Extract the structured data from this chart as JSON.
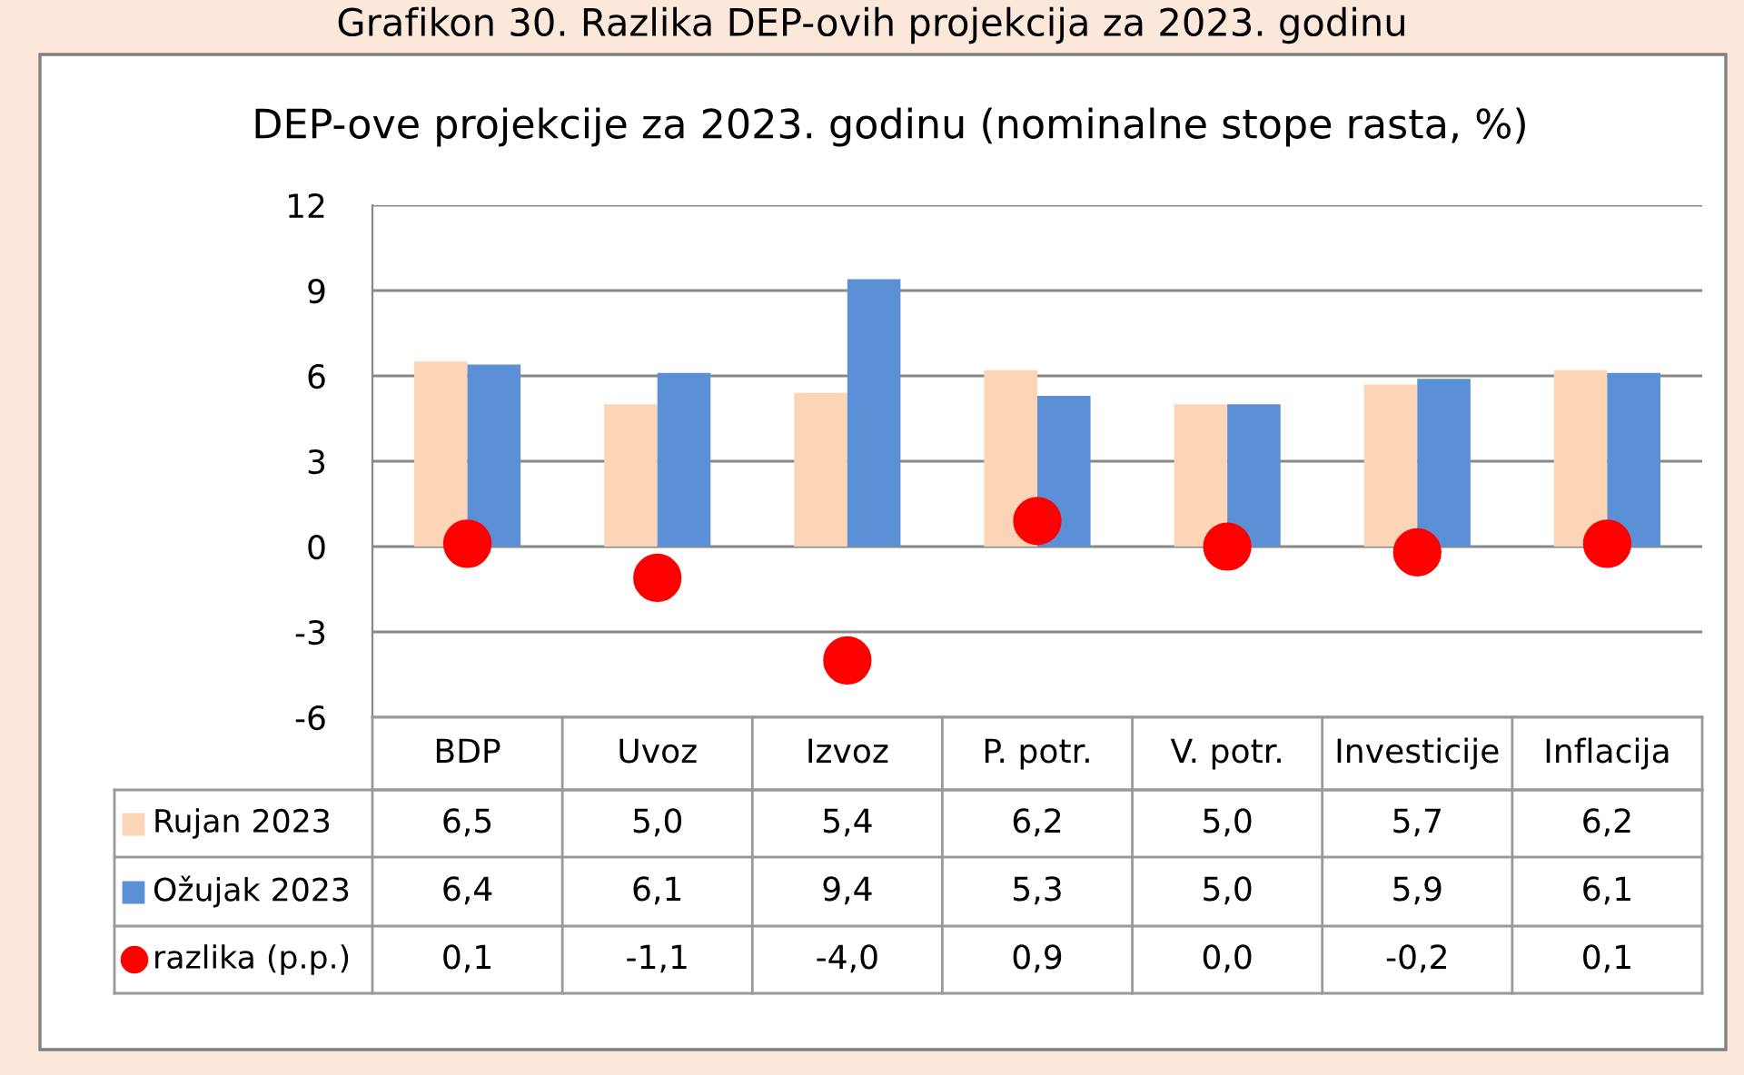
{
  "chart_data": {
    "type": "bar",
    "title": "Grafikon 30. Razlika DEP-ovih projekcija za 2023. godinu",
    "subtitle": "DEP-ove projekcije za 2023. godinu (nominalne stope rasta, %)",
    "categories": [
      "BDP",
      "Uvoz",
      "Izvoz",
      "P. potr.",
      "V. potr.",
      "Investicije",
      "Inflacija"
    ],
    "series": [
      {
        "name": "Rujan 2023",
        "color": "#fbd5b5",
        "values": [
          6.5,
          5.0,
          5.4,
          6.2,
          5.0,
          5.7,
          6.2
        ],
        "value_labels": [
          "6,5",
          "5,0",
          "5,4",
          "6,2",
          "5,0",
          "5,7",
          "6,2"
        ]
      },
      {
        "name": "Ožujak 2023",
        "color": "#5b8fd6",
        "values": [
          6.4,
          6.1,
          9.4,
          5.3,
          5.0,
          5.9,
          6.1
        ],
        "value_labels": [
          "6,4",
          "6,1",
          "9,4",
          "5,3",
          "5,0",
          "5,9",
          "6,1"
        ]
      },
      {
        "name": "razlika (p.p.)",
        "type": "scatter",
        "marker": "circle",
        "color": "#ff0000",
        "values": [
          0.1,
          -1.1,
          -4.0,
          0.9,
          0.0,
          -0.2,
          0.1
        ],
        "value_labels": [
          "0,1",
          "-1,1",
          "-4,0",
          "0,9",
          "0,0",
          "-0,2",
          "0,1"
        ]
      }
    ],
    "ylim": [
      -6,
      12
    ],
    "yticks": [
      {
        "value": -6,
        "label": "-6"
      },
      {
        "value": -3,
        "label": "-3"
      },
      0,
      3,
      6,
      9,
      12
    ],
    "grid": "y",
    "legend": "bottom left"
  }
}
